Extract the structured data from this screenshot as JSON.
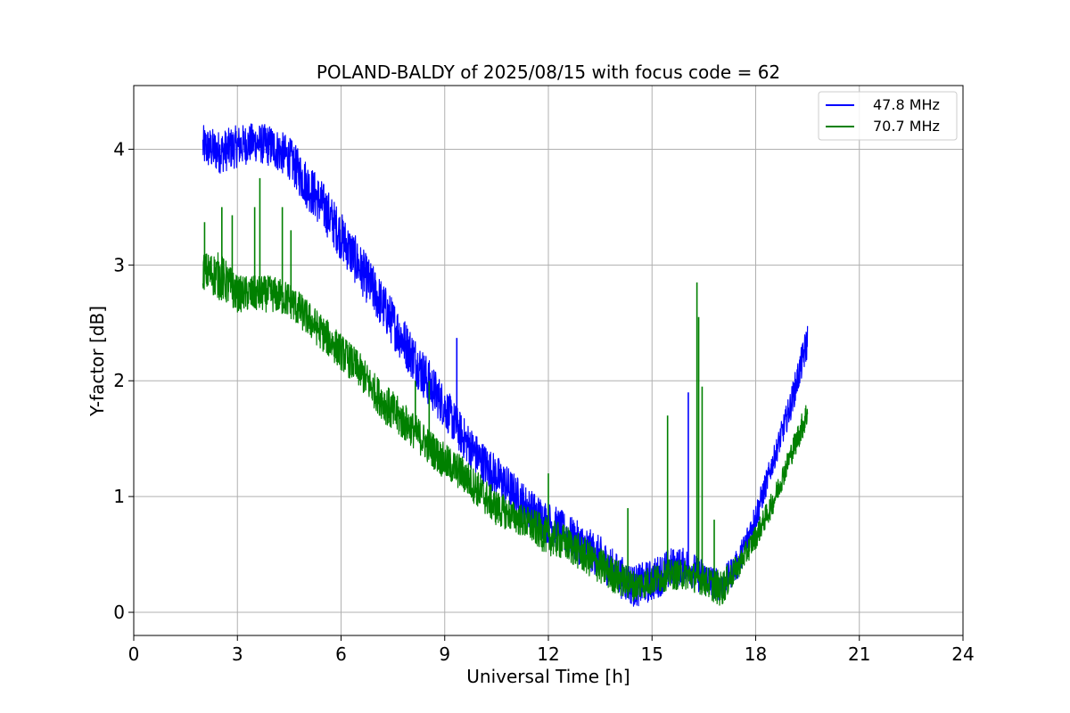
{
  "chart_data": {
    "type": "line",
    "title": "POLAND-BALDY of 2025/08/15 with focus code = 62",
    "xlabel": "Universal Time [h]",
    "ylabel": "Y-factor [dB]",
    "xlim": [
      0,
      24
    ],
    "ylim": [
      -0.2,
      4.55
    ],
    "xticks": [
      0,
      3,
      6,
      9,
      12,
      15,
      18,
      21,
      24
    ],
    "yticks": [
      0,
      1,
      2,
      3,
      4
    ],
    "grid": true,
    "legend_position": "top-right",
    "series": [
      {
        "name": "47.8 MHz",
        "color": "#0000ff",
        "x": [
          2.0,
          2.5,
          3.0,
          3.5,
          4.0,
          4.5,
          5.0,
          5.5,
          6.0,
          6.5,
          7.0,
          7.5,
          8.0,
          8.5,
          9.0,
          9.5,
          10.0,
          10.5,
          11.0,
          11.5,
          12.0,
          12.5,
          13.0,
          13.5,
          14.0,
          14.5,
          15.0,
          15.5,
          16.0,
          16.5,
          17.0,
          17.5,
          18.0,
          18.5,
          19.0,
          19.5
        ],
        "upper": [
          4.2,
          4.15,
          4.2,
          4.22,
          4.2,
          4.1,
          3.9,
          3.7,
          3.45,
          3.2,
          2.95,
          2.7,
          2.45,
          2.2,
          1.95,
          1.7,
          1.5,
          1.35,
          1.2,
          1.05,
          0.95,
          0.85,
          0.75,
          0.65,
          0.5,
          0.4,
          0.45,
          0.55,
          0.55,
          0.45,
          0.35,
          0.55,
          0.95,
          1.4,
          1.9,
          2.5
        ],
        "lower": [
          3.85,
          3.8,
          3.85,
          3.9,
          3.85,
          3.75,
          3.5,
          3.3,
          3.05,
          2.8,
          2.55,
          2.3,
          2.05,
          1.8,
          1.6,
          1.35,
          1.15,
          1.0,
          0.85,
          0.7,
          0.6,
          0.5,
          0.4,
          0.3,
          0.15,
          0.05,
          0.1,
          0.2,
          0.25,
          0.15,
          0.1,
          0.3,
          0.7,
          1.2,
          1.65,
          2.2
        ],
        "spikes": [
          {
            "x": 9.35,
            "y": 2.37
          },
          {
            "x": 16.05,
            "y": 1.9
          }
        ]
      },
      {
        "name": "70.7 MHz",
        "color": "#008000",
        "x": [
          2.0,
          2.5,
          3.0,
          3.5,
          4.0,
          4.5,
          5.0,
          5.5,
          6.0,
          6.5,
          7.0,
          7.5,
          8.0,
          8.5,
          9.0,
          9.5,
          10.0,
          10.5,
          11.0,
          11.5,
          12.0,
          12.5,
          13.0,
          13.5,
          14.0,
          14.5,
          15.0,
          15.5,
          16.0,
          16.5,
          17.0,
          17.5,
          18.0,
          18.5,
          19.0,
          19.5
        ],
        "upper": [
          3.1,
          3.1,
          2.9,
          2.9,
          2.9,
          2.85,
          2.7,
          2.55,
          2.4,
          2.25,
          2.05,
          1.9,
          1.75,
          1.6,
          1.45,
          1.35,
          1.2,
          1.05,
          0.95,
          0.9,
          0.8,
          0.75,
          0.65,
          0.55,
          0.45,
          0.35,
          0.4,
          0.45,
          0.45,
          0.4,
          0.35,
          0.5,
          0.75,
          1.05,
          1.45,
          1.85
        ],
        "lower": [
          2.8,
          2.7,
          2.6,
          2.6,
          2.6,
          2.55,
          2.4,
          2.25,
          2.1,
          1.95,
          1.75,
          1.55,
          1.45,
          1.3,
          1.15,
          1.05,
          0.9,
          0.75,
          0.7,
          0.6,
          0.5,
          0.45,
          0.35,
          0.25,
          0.15,
          0.1,
          0.15,
          0.2,
          0.2,
          0.15,
          0.05,
          0.3,
          0.55,
          0.85,
          1.25,
          1.6
        ],
        "spikes": [
          {
            "x": 2.05,
            "y": 3.37
          },
          {
            "x": 2.55,
            "y": 3.5
          },
          {
            "x": 2.85,
            "y": 3.43
          },
          {
            "x": 3.65,
            "y": 3.75
          },
          {
            "x": 3.5,
            "y": 3.5
          },
          {
            "x": 4.3,
            "y": 3.5
          },
          {
            "x": 4.55,
            "y": 3.3
          },
          {
            "x": 8.15,
            "y": 2.0
          },
          {
            "x": 8.55,
            "y": 2.0
          },
          {
            "x": 12.0,
            "y": 1.2
          },
          {
            "x": 14.3,
            "y": 0.9
          },
          {
            "x": 15.45,
            "y": 1.7
          },
          {
            "x": 16.3,
            "y": 2.85
          },
          {
            "x": 16.35,
            "y": 2.55
          },
          {
            "x": 16.45,
            "y": 1.95
          },
          {
            "x": 16.8,
            "y": 0.8
          }
        ]
      }
    ]
  }
}
